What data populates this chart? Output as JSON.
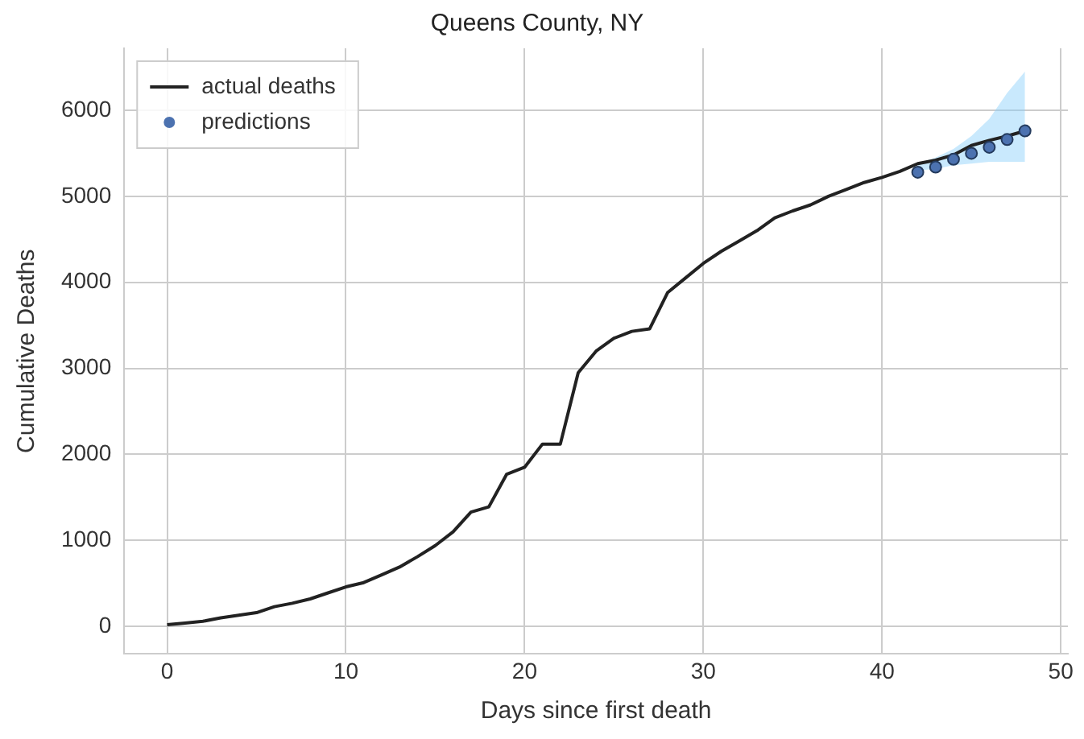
{
  "chart_data": {
    "type": "line",
    "title": "Queens County, NY",
    "xlabel": "Days since first death",
    "ylabel": "Cumulative Deaths",
    "xlim": [
      -2.4,
      50.4
    ],
    "xticks": [
      0,
      10,
      20,
      30,
      40,
      50
    ],
    "ylim": [
      -320,
      6720
    ],
    "yticks": [
      0,
      1000,
      2000,
      3000,
      4000,
      5000,
      6000
    ],
    "grid": true,
    "legend": "top left",
    "series": [
      {
        "name": "actual deaths",
        "type": "line",
        "color": "#222222",
        "marker": "none",
        "x": [
          0,
          1,
          2,
          3,
          4,
          5,
          6,
          7,
          8,
          9,
          10,
          11,
          12,
          13,
          14,
          15,
          16,
          17,
          18,
          19,
          20,
          21,
          22,
          23,
          24,
          25,
          26,
          27,
          28,
          29,
          30,
          31,
          32,
          33,
          34,
          35,
          36,
          37,
          38,
          39,
          40,
          41,
          42,
          43,
          44,
          45,
          46,
          47,
          48
        ],
        "values": [
          20,
          40,
          60,
          100,
          130,
          160,
          230,
          270,
          320,
          390,
          460,
          510,
          600,
          690,
          810,
          940,
          1100,
          1330,
          1390,
          1770,
          1850,
          2120,
          2120,
          2950,
          3200,
          3350,
          3430,
          3460,
          3880,
          4050,
          4220,
          4360,
          4480,
          4600,
          4750,
          4830,
          4900,
          5000,
          5080,
          5160,
          5220,
          5290,
          5380,
          5420,
          5480,
          5590,
          5650,
          5700,
          5760
        ]
      },
      {
        "name": "predictions",
        "type": "scatter",
        "color": "#4c72b0",
        "marker": "circle",
        "x": [
          42,
          43,
          44,
          45,
          46,
          47,
          48
        ],
        "values": [
          5280,
          5340,
          5430,
          5500,
          5570,
          5660,
          5760
        ],
        "lower": [
          5300,
          5320,
          5360,
          5380,
          5400,
          5400,
          5400
        ],
        "upper": [
          5380,
          5450,
          5550,
          5700,
          5900,
          6200,
          6450
        ]
      }
    ]
  }
}
